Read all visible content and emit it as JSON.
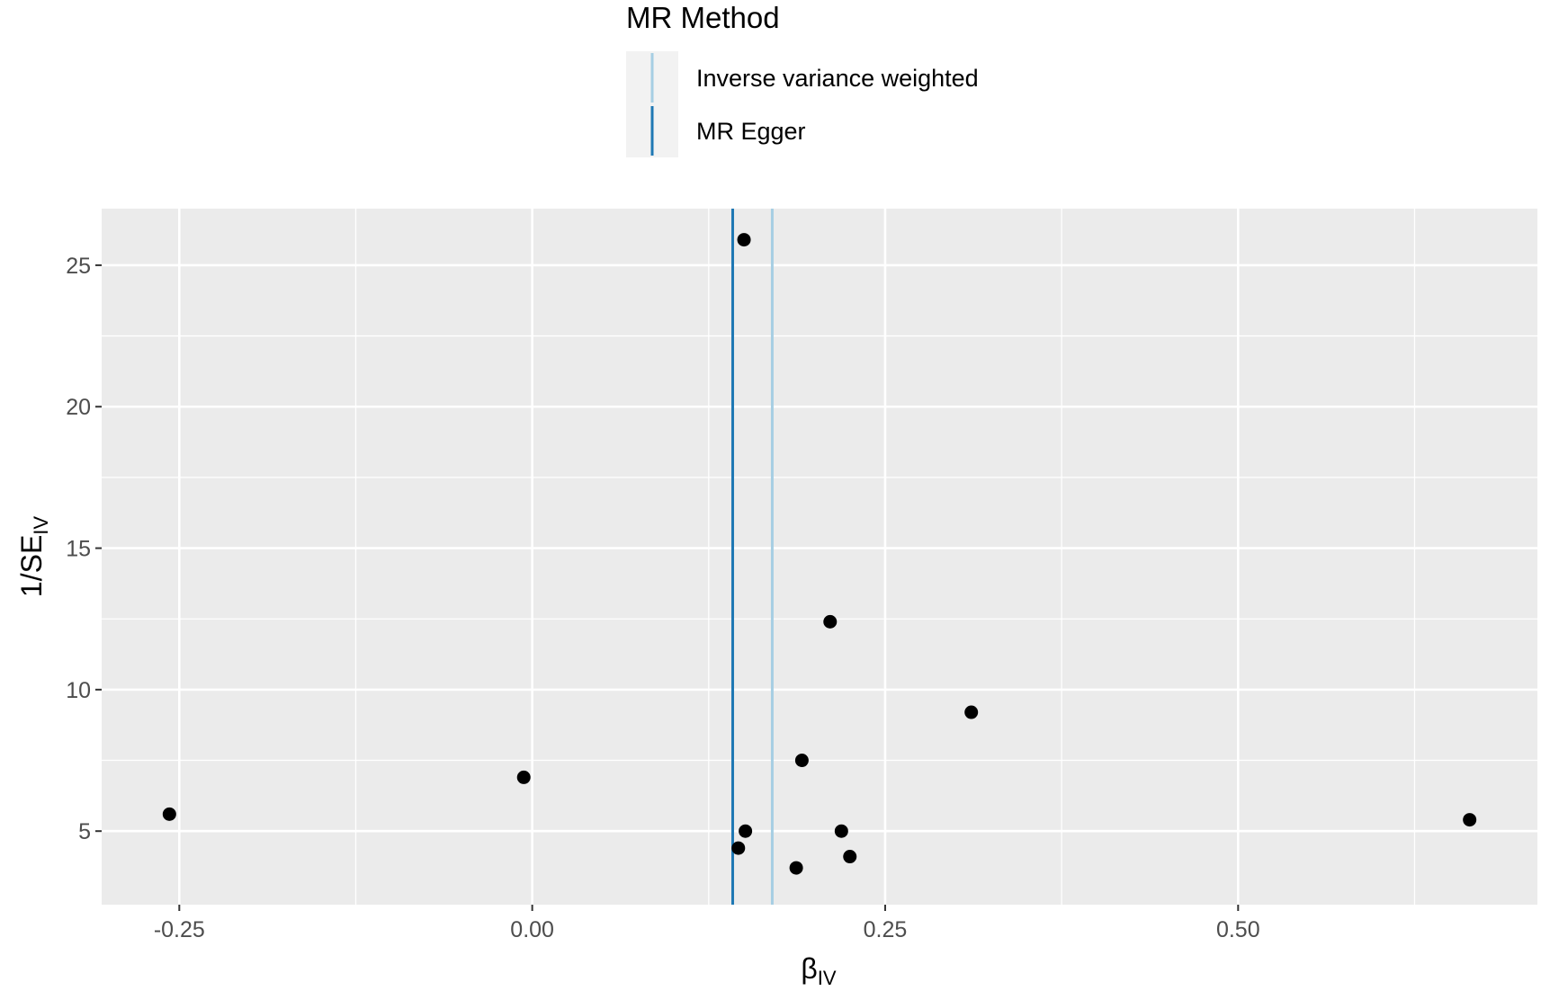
{
  "chart_data": {
    "type": "scatter",
    "title": "",
    "xlabel": "β",
    "xlabel_sub": "IV",
    "ylabel": "1/SE",
    "ylabel_sub": "IV",
    "xlim": [
      -0.305,
      0.712
    ],
    "ylim": [
      2.4,
      27.0
    ],
    "x_ticks": [
      -0.25,
      0.0,
      0.25,
      0.5
    ],
    "x_tick_labels": [
      "-0.25",
      "0.00",
      "0.25",
      "0.50"
    ],
    "x_minor_ticks": [
      -0.125,
      0.125,
      0.375,
      0.625
    ],
    "y_ticks": [
      5,
      10,
      15,
      20,
      25
    ],
    "y_tick_labels": [
      "5",
      "10",
      "15",
      "20",
      "25"
    ],
    "y_minor_ticks": [
      7.5,
      12.5,
      17.5,
      22.5
    ],
    "grid": true,
    "points": [
      {
        "x": 0.15,
        "y": 25.9
      },
      {
        "x": 0.211,
        "y": 12.4
      },
      {
        "x": 0.311,
        "y": 9.2
      },
      {
        "x": 0.191,
        "y": 7.5
      },
      {
        "x": -0.006,
        "y": 6.9
      },
      {
        "x": -0.257,
        "y": 5.6
      },
      {
        "x": 0.664,
        "y": 5.4
      },
      {
        "x": 0.151,
        "y": 5.0
      },
      {
        "x": 0.219,
        "y": 5.0
      },
      {
        "x": 0.146,
        "y": 4.4
      },
      {
        "x": 0.225,
        "y": 4.1
      },
      {
        "x": 0.187,
        "y": 3.7
      }
    ],
    "vlines": [
      {
        "name": "Inverse variance weighted",
        "x": 0.17,
        "color": "#a6cee3"
      },
      {
        "name": "MR Egger",
        "x": 0.142,
        "color": "#1f78b4"
      }
    ],
    "legend": {
      "title": "MR Method",
      "position": "top",
      "entries": [
        "Inverse variance weighted",
        "MR Egger"
      ]
    },
    "colors": {
      "panel": "#ebebeb",
      "grid": "#ffffff",
      "point": "#000000",
      "legend_key": "#f2f2f2"
    }
  }
}
